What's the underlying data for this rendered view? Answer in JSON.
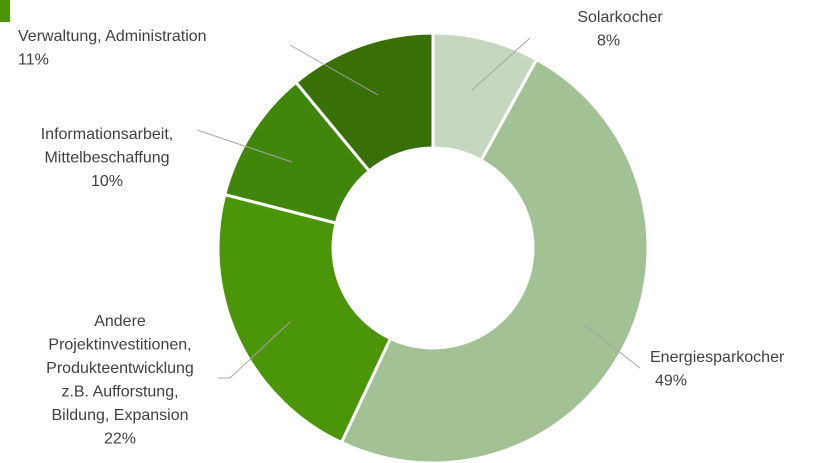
{
  "chart_data": {
    "type": "donut",
    "categories": [
      [
        "Solarkocher"
      ],
      [
        "Energiesparkocher"
      ],
      [
        "Andere",
        "Projektinvestitionen,",
        "Produkteentwicklung",
        "z.B. Aufforstung,",
        "Bildung, Expansion"
      ],
      [
        "Informationsarbeit,",
        "Mittelbeschaffung"
      ],
      [
        "Verwaltung, Administration"
      ]
    ],
    "values": [
      8,
      49,
      22,
      10,
      11
    ],
    "value_labels": [
      "8%",
      "49%",
      "22%",
      "10%",
      "11%"
    ],
    "colors": [
      "#c5d8bf",
      "#a2c195",
      "#4b9508",
      "#3f860a",
      "#386f06"
    ]
  }
}
